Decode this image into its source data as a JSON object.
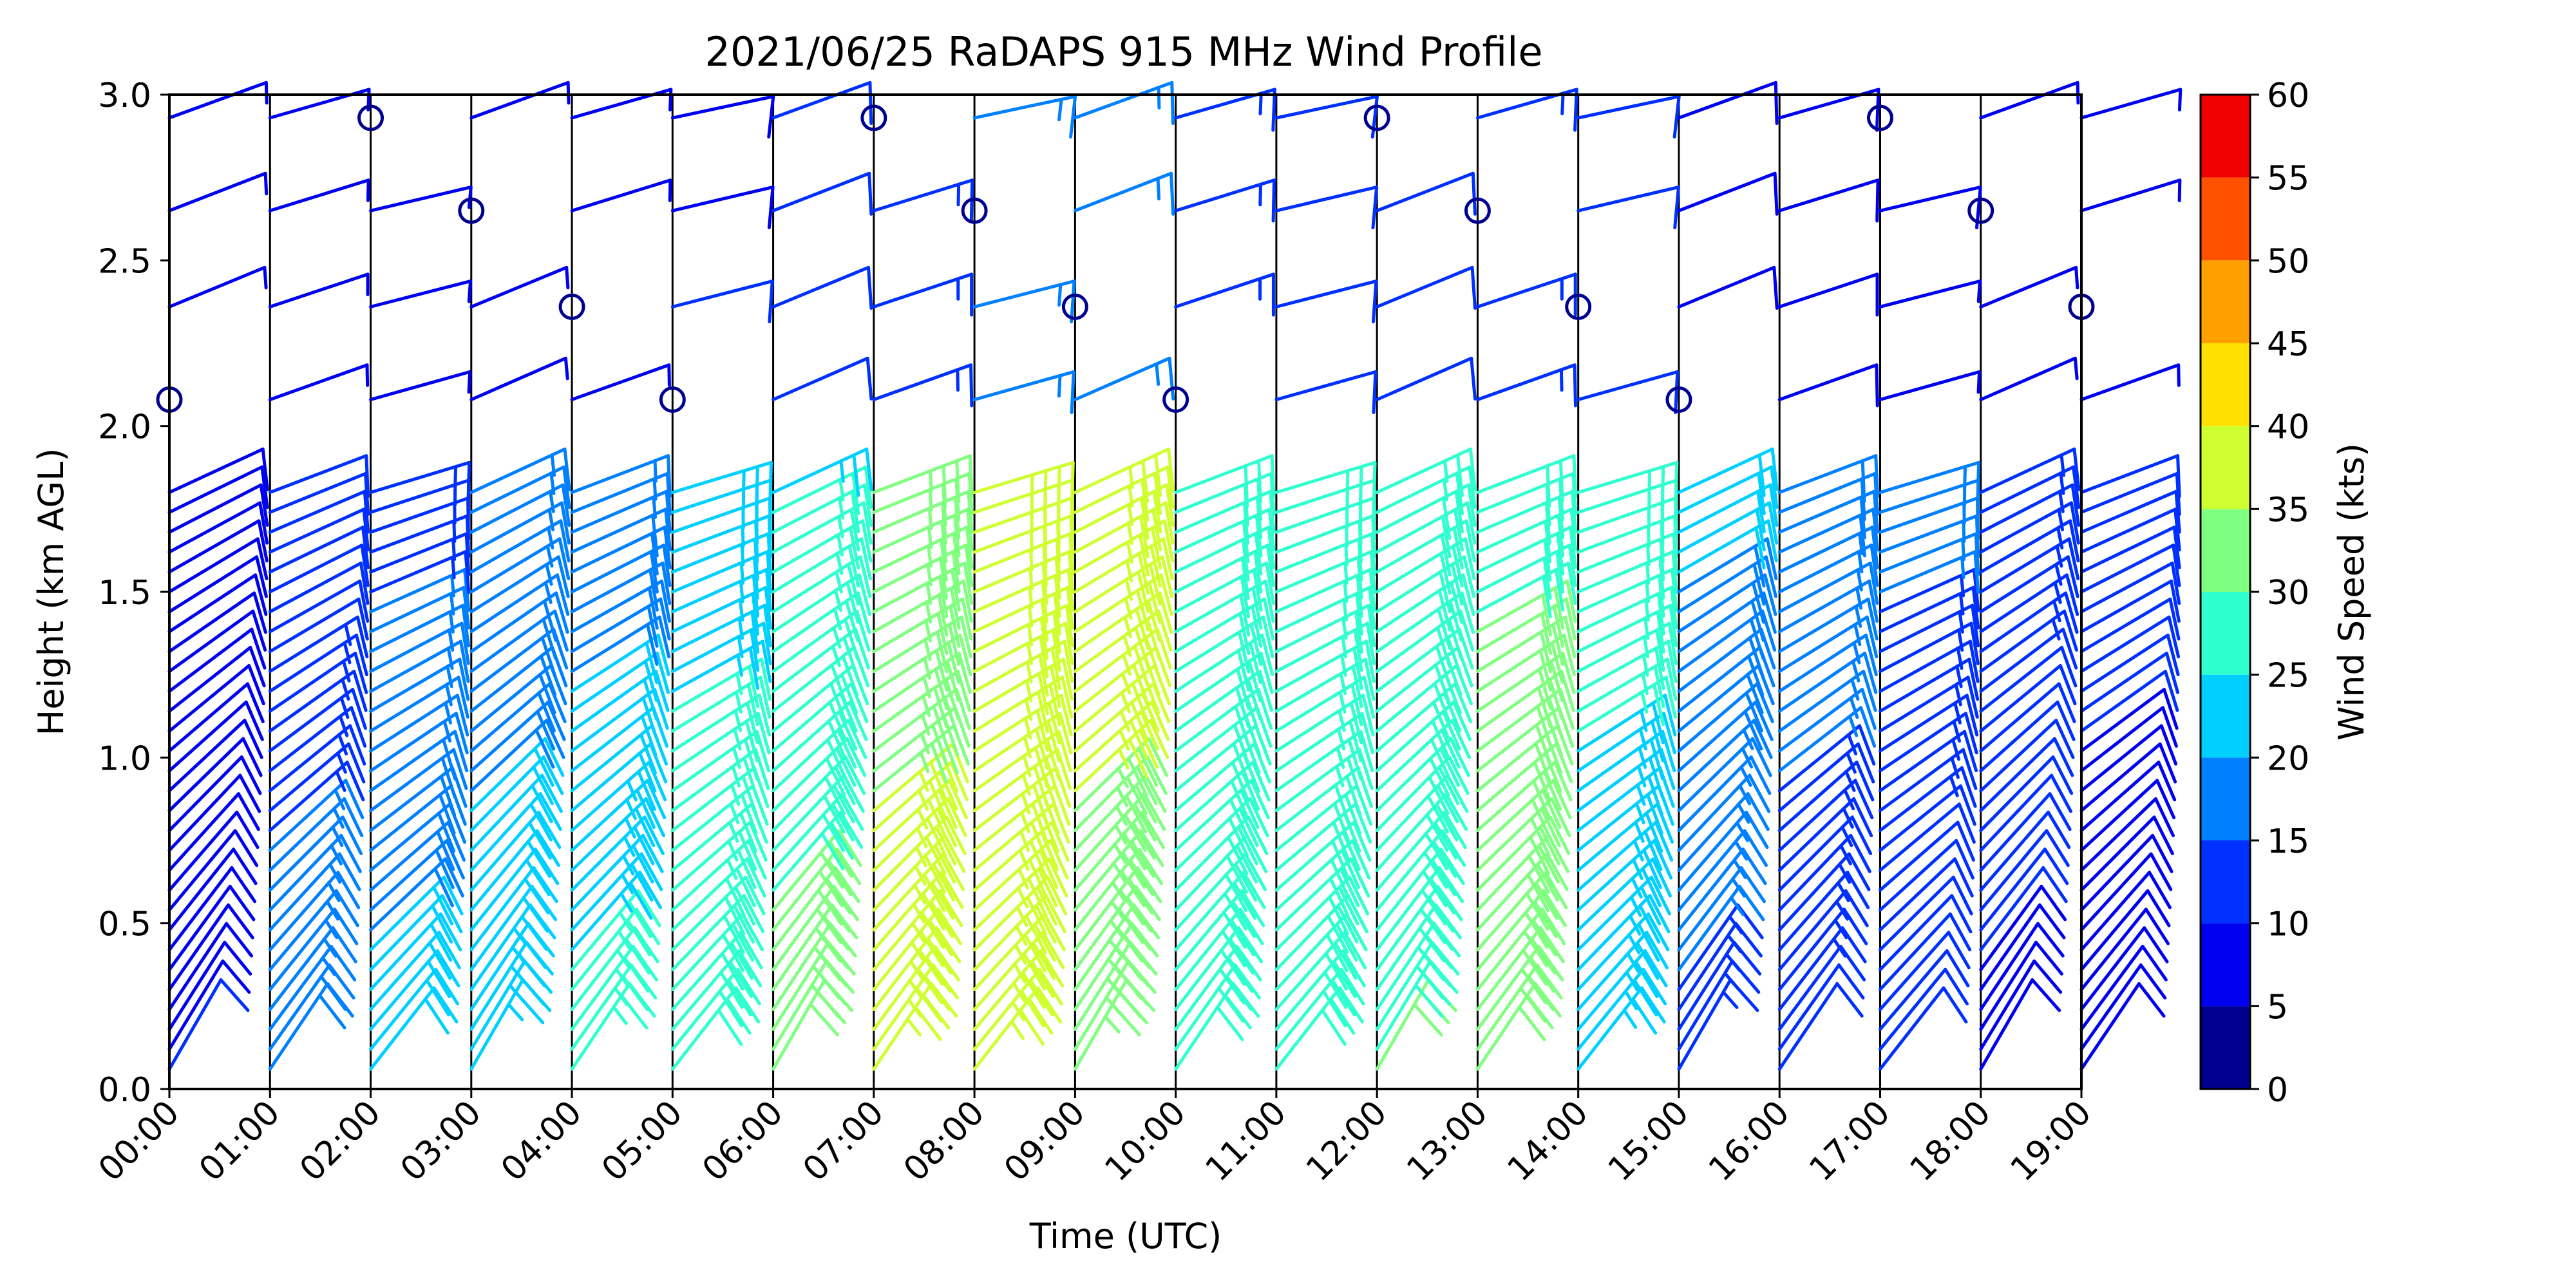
{
  "chart_data": {
    "type": "wind_barb_time_height",
    "title": "2021/06/25 RaDAPS 915 MHz Wind Profile",
    "xlabel": "Time (UTC)",
    "ylabel": "Height (km AGL)",
    "xlim": [
      0,
      19
    ],
    "ylim": [
      0,
      3
    ],
    "x_ticks": [
      "00:00",
      "01:00",
      "02:00",
      "03:00",
      "04:00",
      "05:00",
      "06:00",
      "07:00",
      "08:00",
      "09:00",
      "10:00",
      "11:00",
      "12:00",
      "13:00",
      "14:00",
      "15:00",
      "16:00",
      "17:00",
      "18:00",
      "19:00"
    ],
    "y_ticks": [
      "0.0",
      "0.5",
      "1.0",
      "1.5",
      "2.0",
      "2.5",
      "3.0"
    ],
    "grid": "vertical lines at each hour",
    "colorbar": {
      "label": "Wind Speed (kts)",
      "colormap": "jet",
      "range": [
        0,
        60
      ],
      "step": 5,
      "ticks": [
        "0",
        "5",
        "10",
        "15",
        "20",
        "25",
        "30",
        "35",
        "40",
        "45",
        "50",
        "55",
        "60"
      ],
      "colors": [
        "#00008f",
        "#0000f0",
        "#0030ff",
        "#0080ff",
        "#00d0ff",
        "#30ffcf",
        "#80ff80",
        "#cfff30",
        "#ffe000",
        "#ffa000",
        "#ff5000",
        "#f00000",
        "#800000"
      ]
    },
    "note_calm": "circles indicate calm winds",
    "heights_km": [
      0.06,
      0.12,
      0.18,
      0.24,
      0.3,
      0.36,
      0.42,
      0.48,
      0.54,
      0.6,
      0.66,
      0.72,
      0.78,
      0.84,
      0.9,
      0.96,
      1.02,
      1.08,
      1.14,
      1.2,
      1.26,
      1.32,
      1.38,
      1.44,
      1.5,
      1.56,
      1.62,
      1.68,
      1.74,
      1.8,
      2.08,
      2.36,
      2.65,
      2.93
    ],
    "hourly_low_level_speed_kts": [
      {
        "time": "00:00",
        "speed_low": 10,
        "speed_high": 8
      },
      {
        "time": "01:00",
        "speed_low": 18,
        "speed_high": 9
      },
      {
        "time": "02:00",
        "speed_low": 22,
        "speed_high": 12
      },
      {
        "time": "03:00",
        "speed_low": 24,
        "speed_high": 14
      },
      {
        "time": "04:00",
        "speed_low": 27,
        "speed_high": 15
      },
      {
        "time": "05:00",
        "speed_low": 29,
        "speed_high": 22
      },
      {
        "time": "06:00",
        "speed_low": 32,
        "speed_high": 24
      },
      {
        "time": "07:00",
        "speed_low": 37,
        "speed_high": 32
      },
      {
        "time": "08:00",
        "speed_low": 36,
        "speed_high": 36
      },
      {
        "time": "09:00",
        "speed_low": 33,
        "speed_high": 38
      },
      {
        "time": "10:00",
        "speed_low": 29,
        "speed_high": 28
      },
      {
        "time": "11:00",
        "speed_low": 29,
        "speed_high": 25
      },
      {
        "time": "12:00",
        "speed_low": 30,
        "speed_high": 27
      },
      {
        "time": "13:00",
        "speed_low": 32,
        "speed_high": 29
      },
      {
        "time": "14:00",
        "speed_low": 24,
        "speed_high": 26
      },
      {
        "time": "15:00",
        "speed_low": 14,
        "speed_high": 22
      },
      {
        "time": "16:00",
        "speed_low": 12,
        "speed_high": 19
      },
      {
        "time": "17:00",
        "speed_low": 10,
        "speed_high": 17
      },
      {
        "time": "18:00",
        "speed_low": 9,
        "speed_high": 15
      },
      {
        "time": "19:00",
        "speed_low": 8,
        "speed_high": 12
      }
    ]
  }
}
